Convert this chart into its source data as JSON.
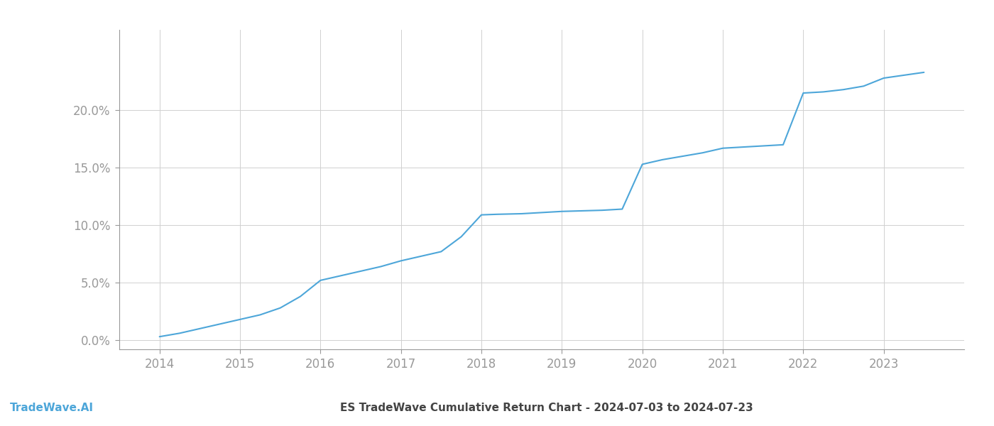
{
  "title": "ES TradeWave Cumulative Return Chart - 2024-07-03 to 2024-07-23",
  "watermark": "TradeWave.AI",
  "line_color": "#4da6d9",
  "background_color": "#ffffff",
  "grid_color": "#d0d0d0",
  "x_data": [
    2014.0,
    2014.25,
    2014.5,
    2014.75,
    2015.0,
    2015.25,
    2015.5,
    2015.75,
    2016.0,
    2016.25,
    2016.5,
    2016.75,
    2017.0,
    2017.25,
    2017.5,
    2017.75,
    2018.0,
    2018.2,
    2018.5,
    2018.75,
    2019.0,
    2019.25,
    2019.5,
    2019.75,
    2020.0,
    2020.25,
    2020.5,
    2020.75,
    2021.0,
    2021.25,
    2021.5,
    2021.75,
    2022.0,
    2022.25,
    2022.5,
    2022.75,
    2023.0,
    2023.5
  ],
  "y_data": [
    0.003,
    0.006,
    0.01,
    0.014,
    0.018,
    0.022,
    0.028,
    0.038,
    0.052,
    0.056,
    0.06,
    0.064,
    0.069,
    0.073,
    0.077,
    0.09,
    0.109,
    0.1095,
    0.11,
    0.111,
    0.112,
    0.1125,
    0.113,
    0.114,
    0.153,
    0.157,
    0.16,
    0.163,
    0.167,
    0.168,
    0.169,
    0.17,
    0.215,
    0.216,
    0.218,
    0.221,
    0.228,
    0.233
  ],
  "xlim": [
    2013.5,
    2024.0
  ],
  "ylim": [
    -0.008,
    0.27
  ],
  "yticks": [
    0.0,
    0.05,
    0.1,
    0.15,
    0.2
  ],
  "ytick_labels": [
    "0.0%",
    "5.0%",
    "10.0%",
    "15.0%",
    "20.0%"
  ],
  "xticks": [
    2014,
    2015,
    2016,
    2017,
    2018,
    2019,
    2020,
    2021,
    2022,
    2023
  ],
  "xtick_labels": [
    "2014",
    "2015",
    "2016",
    "2017",
    "2018",
    "2019",
    "2020",
    "2021",
    "2022",
    "2023"
  ],
  "tick_color": "#999999",
  "title_color": "#444444",
  "label_fontsize": 12,
  "title_fontsize": 11,
  "watermark_fontsize": 11
}
